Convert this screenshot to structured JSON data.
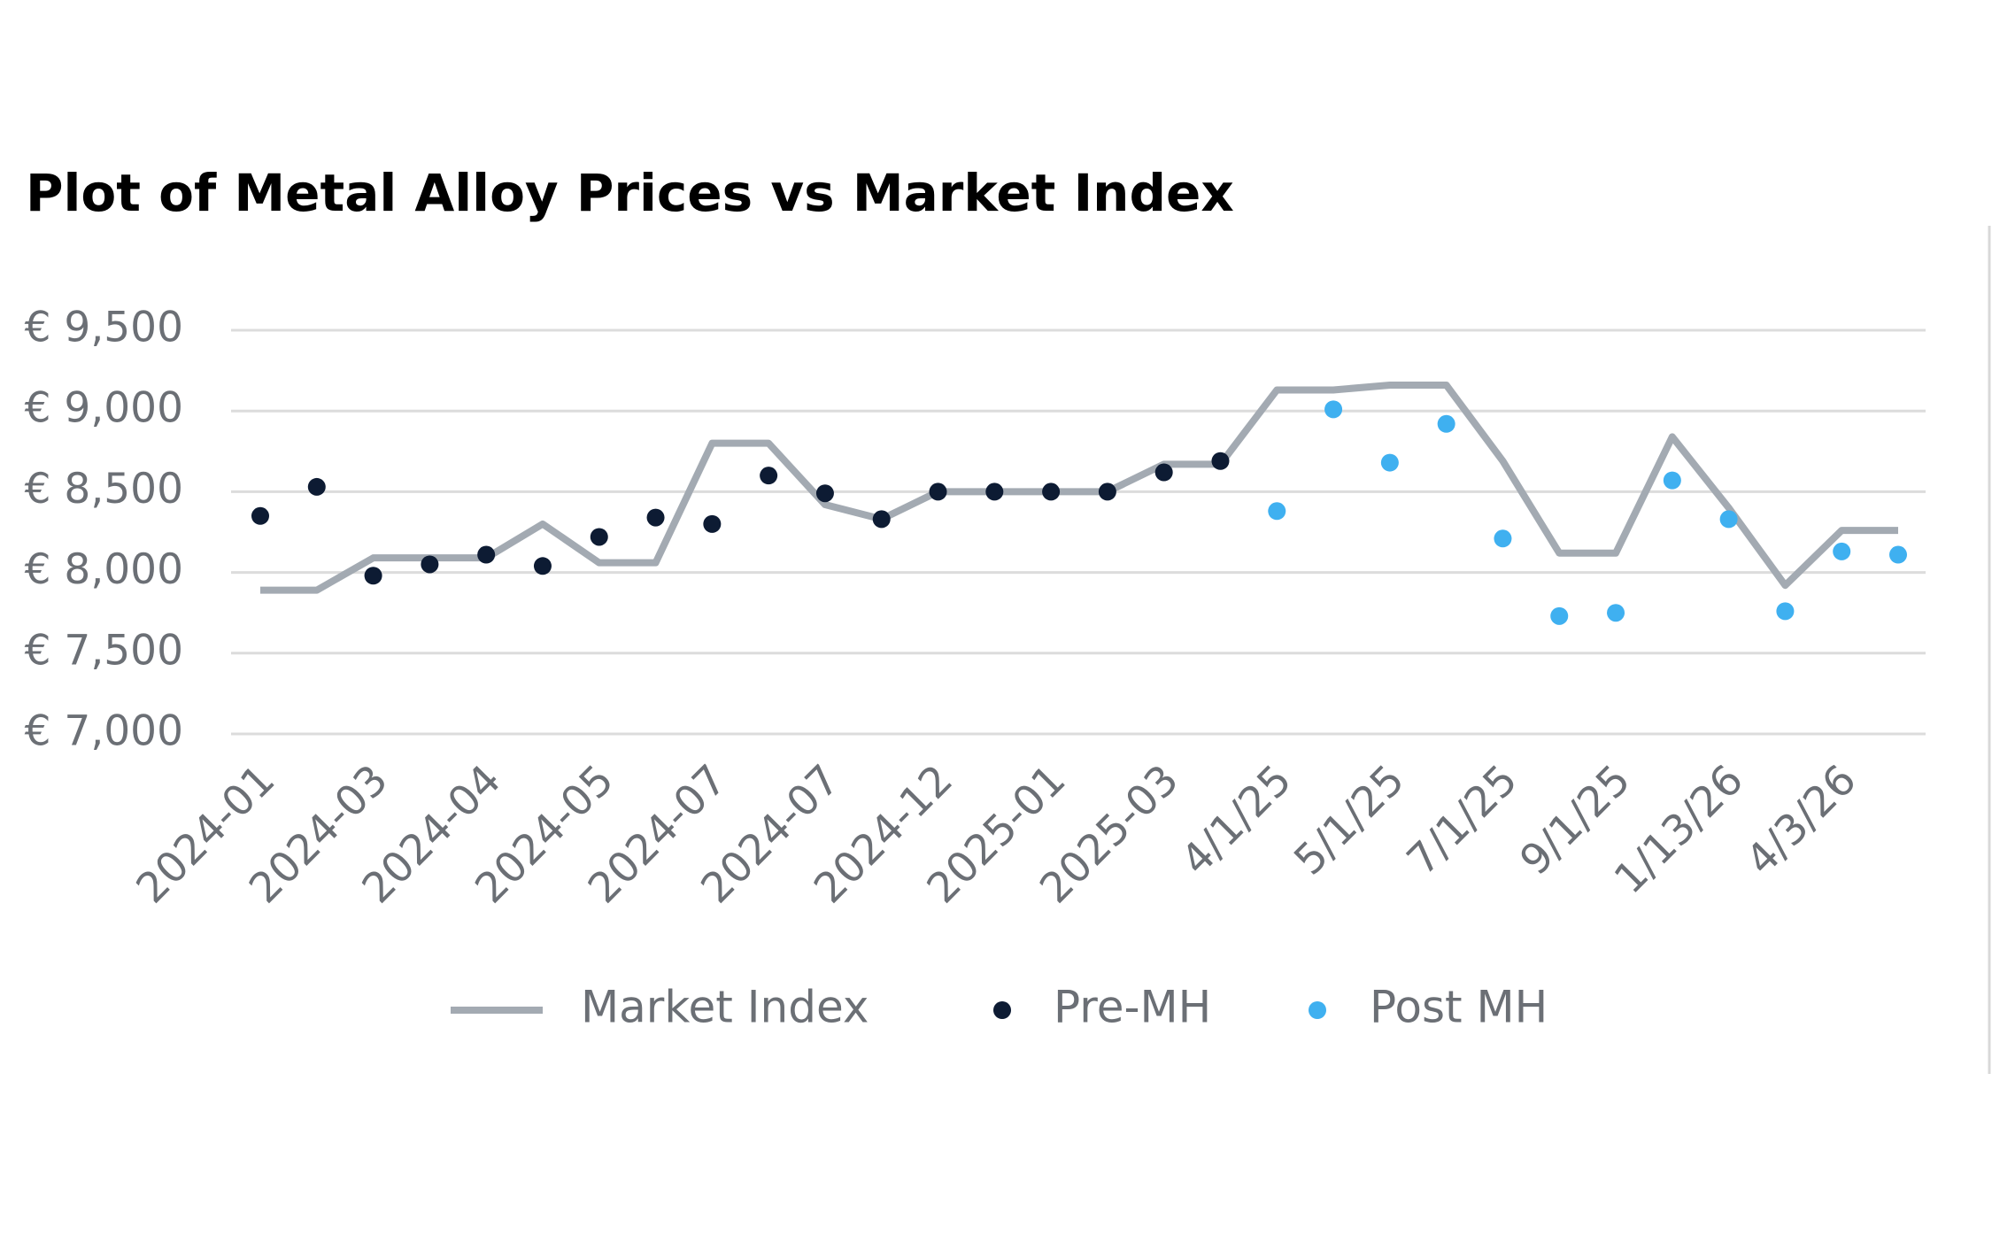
{
  "chart_data": {
    "type": "line",
    "title": "Plot of Metal Alloy Prices vs Market Index",
    "categories": [
      "2024-01",
      null,
      "2024-03",
      null,
      "2024-04",
      null,
      "2024-05",
      null,
      "2024-07",
      null,
      "2024-07",
      null,
      "2024-12",
      null,
      "2025-01",
      null,
      "2025-03",
      null,
      "4/1/25",
      null,
      "5/1/25",
      null,
      "7/1/25",
      null,
      "9/1/25",
      null,
      "1/13/26",
      null,
      "4/3/26",
      null
    ],
    "series": [
      {
        "name": "Market Index",
        "type": "line",
        "color": "#a3aab2",
        "values": [
          7890,
          7890,
          8090,
          8090,
          8090,
          8300,
          8060,
          8060,
          8800,
          8800,
          8420,
          8330,
          8500,
          8500,
          8500,
          8500,
          8670,
          8670,
          9130,
          9130,
          9160,
          9160,
          8690,
          8120,
          8120,
          8840,
          8400,
          7920,
          8260,
          8260
        ]
      },
      {
        "name": "Pre-MH",
        "type": "scatter",
        "color": "#0d1b33",
        "values": [
          8350,
          8530,
          7980,
          8050,
          8110,
          8040,
          8220,
          8340,
          8300,
          8600,
          8490,
          8330,
          8500,
          8500,
          8500,
          8500,
          8620,
          8690,
          null,
          null,
          null,
          null,
          null,
          null,
          null,
          null,
          null,
          null,
          null,
          null
        ]
      },
      {
        "name": "Post MH",
        "type": "scatter",
        "color": "#3fb0f0",
        "values": [
          null,
          null,
          null,
          null,
          null,
          null,
          null,
          null,
          null,
          null,
          null,
          null,
          null,
          null,
          null,
          null,
          null,
          null,
          8380,
          9010,
          8680,
          8920,
          8210,
          7730,
          7750,
          8570,
          8330,
          7760,
          8130,
          8110
        ]
      }
    ],
    "ylim": [
      7000,
      9500
    ],
    "yticks": [
      {
        "value": 7000,
        "label": "€ 7,000"
      },
      {
        "value": 7500,
        "label": "€ 7,500"
      },
      {
        "value": 8000,
        "label": "€ 8,000"
      },
      {
        "value": 8500,
        "label": "€ 8,500"
      },
      {
        "value": 9000,
        "label": "€ 9,000"
      },
      {
        "value": 9500,
        "label": "€ 9,500"
      }
    ],
    "grid": true,
    "legend": "bottom"
  }
}
